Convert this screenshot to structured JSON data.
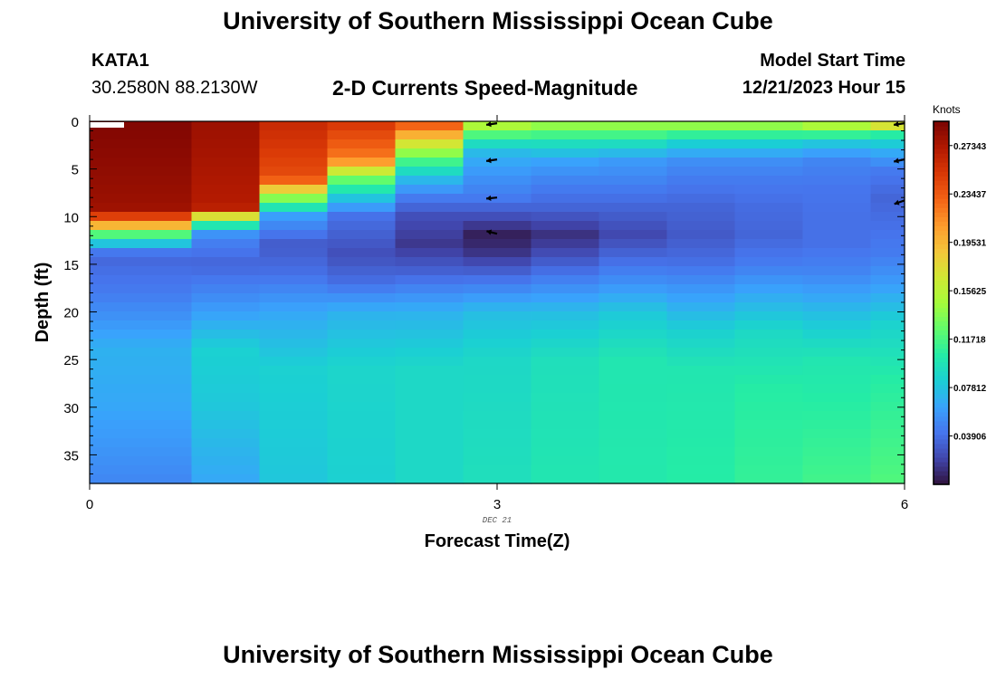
{
  "header": {
    "title": "University of Southern Mississippi Ocean Cube",
    "station": "KATA1",
    "coords": "30.2580N  88.2130W",
    "plot_title": "2-D Currents Speed-Magnitude",
    "model_start_label": "Model Start Time",
    "model_start_value": "12/21/2023 Hour 15"
  },
  "footer": {
    "title": "University of Southern Mississippi Ocean Cube"
  },
  "colorbar": {
    "unit": "Knots",
    "labels": [
      "0.27343",
      "0.23437",
      "0.19531",
      "0.15625",
      "0.11718",
      "0.07812",
      "0.03906"
    ],
    "colors": [
      "#30123b",
      "#4145ab",
      "#4675ed",
      "#39a2fc",
      "#1bcfd4",
      "#24eca6",
      "#61fc6c",
      "#a4fc3b",
      "#d1e834",
      "#f3c63a",
      "#fe9b2d",
      "#f36315",
      "#d93806",
      "#b11901",
      "#7a0402"
    ]
  },
  "chart_data": {
    "type": "heatmap",
    "title": "2-D Currents Speed-Magnitude",
    "xlabel": "Forecast Time(Z)",
    "ylabel": "Depth (ft)",
    "xlim": [
      0,
      6
    ],
    "ylim": [
      38,
      0
    ],
    "x_ticks": [
      0,
      3,
      6
    ],
    "x_tick_labels": [
      "0",
      "3",
      "6"
    ],
    "date_label": "DEC 21",
    "y_ticks": [
      0,
      5,
      10,
      15,
      20,
      25,
      30,
      35
    ],
    "y_tick_labels": [
      "0",
      "5",
      "10",
      "15",
      "20",
      "25",
      "30",
      "35"
    ],
    "vmin": 0.0,
    "vmax": 0.293,
    "profiles": [
      {
        "t": 0.5,
        "d": [
          0.5,
          9,
          10.5,
          12,
          14,
          18,
          24,
          30,
          38
        ],
        "v": [
          0.29,
          0.28,
          0.23,
          0.11,
          0.035,
          0.045,
          0.07,
          0.065,
          0.05
        ]
      },
      {
        "t": 1.0,
        "d": [
          0.5,
          9,
          10.5,
          12,
          15,
          18,
          24,
          30,
          38
        ],
        "v": [
          0.28,
          0.27,
          0.12,
          0.05,
          0.035,
          0.05,
          0.085,
          0.08,
          0.065
        ]
      },
      {
        "t": 1.5,
        "d": [
          0.5,
          6,
          8,
          10,
          13,
          16,
          20,
          26,
          38
        ],
        "v": [
          0.26,
          0.24,
          0.14,
          0.06,
          0.03,
          0.04,
          0.065,
          0.085,
          0.08
        ]
      },
      {
        "t": 2.0,
        "d": [
          0.5,
          4,
          6,
          8,
          10,
          14,
          17,
          20,
          26,
          38
        ],
        "v": [
          0.25,
          0.22,
          0.13,
          0.08,
          0.04,
          0.025,
          0.04,
          0.07,
          0.088,
          0.085
        ]
      },
      {
        "t": 2.5,
        "d": [
          0.5,
          2,
          4,
          6,
          8,
          10,
          13,
          16,
          20,
          26,
          38
        ],
        "v": [
          0.23,
          0.18,
          0.12,
          0.075,
          0.045,
          0.025,
          0.015,
          0.035,
          0.07,
          0.09,
          0.09
        ]
      },
      {
        "t": 3.0,
        "d": [
          0.5,
          2,
          3.5,
          6,
          8,
          10,
          12,
          14,
          17,
          20,
          25,
          38
        ],
        "v": [
          0.15,
          0.1,
          0.07,
          0.055,
          0.045,
          0.025,
          0.005,
          0.015,
          0.045,
          0.075,
          0.09,
          0.095
        ]
      },
      {
        "t": 3.5,
        "d": [
          0.5,
          2,
          4,
          6,
          9,
          12,
          14,
          17,
          20,
          25,
          38
        ],
        "v": [
          0.14,
          0.1,
          0.065,
          0.05,
          0.035,
          0.012,
          0.025,
          0.05,
          0.075,
          0.095,
          0.1
        ]
      },
      {
        "t": 4.0,
        "d": [
          0.5,
          2,
          4,
          6,
          9,
          12,
          14,
          17,
          20,
          25,
          38
        ],
        "v": [
          0.14,
          0.1,
          0.06,
          0.05,
          0.035,
          0.022,
          0.035,
          0.055,
          0.08,
          0.1,
          0.102
        ]
      },
      {
        "t": 4.5,
        "d": [
          0.5,
          2,
          4,
          6,
          9,
          12,
          15,
          18,
          22,
          26,
          38
        ],
        "v": [
          0.14,
          0.09,
          0.055,
          0.045,
          0.035,
          0.03,
          0.04,
          0.06,
          0.085,
          0.1,
          0.105
        ]
      },
      {
        "t": 5.0,
        "d": [
          0.5,
          2,
          4,
          6,
          9,
          12,
          15,
          18,
          22,
          28,
          38
        ],
        "v": [
          0.14,
          0.09,
          0.055,
          0.045,
          0.038,
          0.035,
          0.045,
          0.065,
          0.09,
          0.105,
          0.11
        ]
      },
      {
        "t": 5.5,
        "d": [
          0.5,
          2,
          4,
          7,
          10,
          13,
          16,
          20,
          25,
          38
        ],
        "v": [
          0.15,
          0.085,
          0.05,
          0.042,
          0.04,
          0.04,
          0.05,
          0.075,
          0.1,
          0.115
        ]
      },
      {
        "t": 6.0,
        "d": [
          0.5,
          1.5,
          3,
          5,
          8,
          11,
          14,
          17,
          21,
          27,
          38
        ],
        "v": [
          0.17,
          0.1,
          0.07,
          0.045,
          0.035,
          0.04,
          0.045,
          0.06,
          0.085,
          0.105,
          0.12
        ]
      }
    ],
    "vectors": [
      {
        "t": 3.0,
        "depth": 0.2,
        "u": -1,
        "v": 0.15
      },
      {
        "t": 3.0,
        "depth": 4.0,
        "u": -1,
        "v": 0.15
      },
      {
        "t": 3.0,
        "depth": 8.0,
        "u": -1,
        "v": 0.1
      },
      {
        "t": 3.0,
        "depth": 11.8,
        "u": -1,
        "v": -0.25
      },
      {
        "t": 6.0,
        "depth": 0.2,
        "u": -1,
        "v": 0.15
      },
      {
        "t": 6.0,
        "depth": 4.0,
        "u": -1,
        "v": 0.2
      },
      {
        "t": 6.0,
        "depth": 8.3,
        "u": -1,
        "v": 0.35
      }
    ]
  }
}
